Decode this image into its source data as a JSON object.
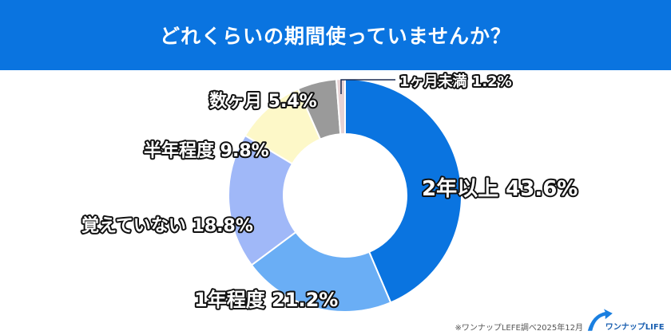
{
  "header": {
    "title": "どれくらいの期間使っていませんか？"
  },
  "chart_data": {
    "type": "pie",
    "donut": true,
    "title": "どれくらいの期間使っていませんか？",
    "categories": [
      "2年以上",
      "1年程度",
      "覚えていない",
      "半年程度",
      "数ヶ月",
      "1ヶ月未満"
    ],
    "values": [
      43.6,
      21.2,
      18.8,
      9.8,
      5.4,
      1.2
    ],
    "labels": [
      "2年以上 43.6%",
      "1年程度 21.2%",
      "覚えていない 18.8%",
      "半年程度 9.8%",
      "数ヶ月 5.4%",
      "1ヶ月未満 1.2%"
    ],
    "colors": [
      "#0a74e0",
      "#6aaef5",
      "#a0b8f8",
      "#fdf8c8",
      "#9a9a9a",
      "#e6d2d4"
    ],
    "legend": "none"
  },
  "footer": {
    "source": "※ワンナップLEFE調べ2025年12月",
    "logo_text": "ワンナップLIFE"
  }
}
